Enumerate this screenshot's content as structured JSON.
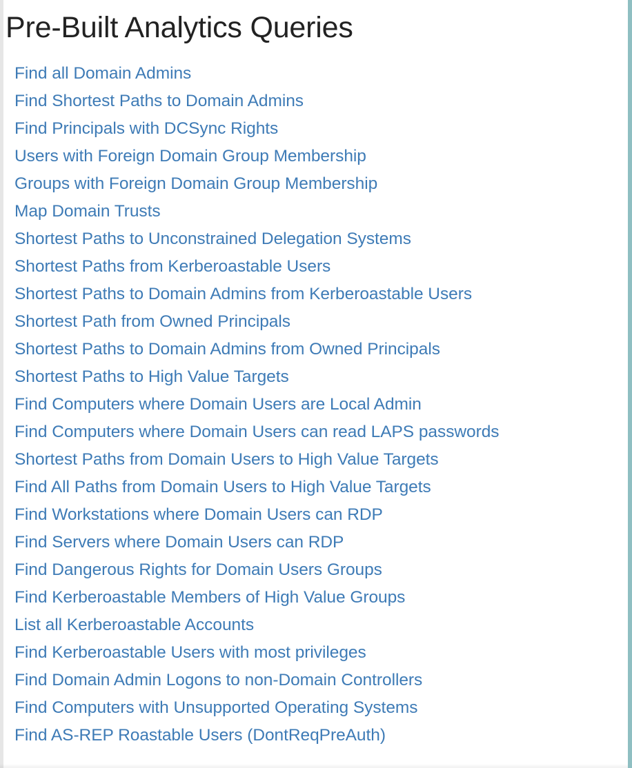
{
  "panel": {
    "title": "Pre-Built Analytics Queries",
    "queries": [
      "Find all Domain Admins",
      "Find Shortest Paths to Domain Admins",
      "Find Principals with DCSync Rights",
      "Users with Foreign Domain Group Membership",
      "Groups with Foreign Domain Group Membership",
      "Map Domain Trusts",
      "Shortest Paths to Unconstrained Delegation Systems",
      "Shortest Paths from Kerberoastable Users",
      "Shortest Paths to Domain Admins from Kerberoastable Users",
      "Shortest Path from Owned Principals",
      "Shortest Paths to Domain Admins from Owned Principals",
      "Shortest Paths to High Value Targets",
      "Find Computers where Domain Users are Local Admin",
      "Find Computers where Domain Users can read LAPS passwords",
      "Shortest Paths from Domain Users to High Value Targets",
      "Find All Paths from Domain Users to High Value Targets",
      "Find Workstations where Domain Users can RDP",
      "Find Servers where Domain Users can RDP",
      "Find Dangerous Rights for Domain Users Groups",
      "Find Kerberoastable Members of High Value Groups",
      "List all Kerberoastable Accounts",
      "Find Kerberoastable Users with most privileges",
      "Find Domain Admin Logons to non-Domain Controllers",
      "Find Computers with Unsupported Operating Systems",
      "Find AS-REP Roastable Users (DontReqPreAuth)"
    ]
  },
  "colors": {
    "link": "#3e7bb6",
    "title": "#222222",
    "right_border": "#8fbfc2",
    "background": "#ffffff"
  }
}
